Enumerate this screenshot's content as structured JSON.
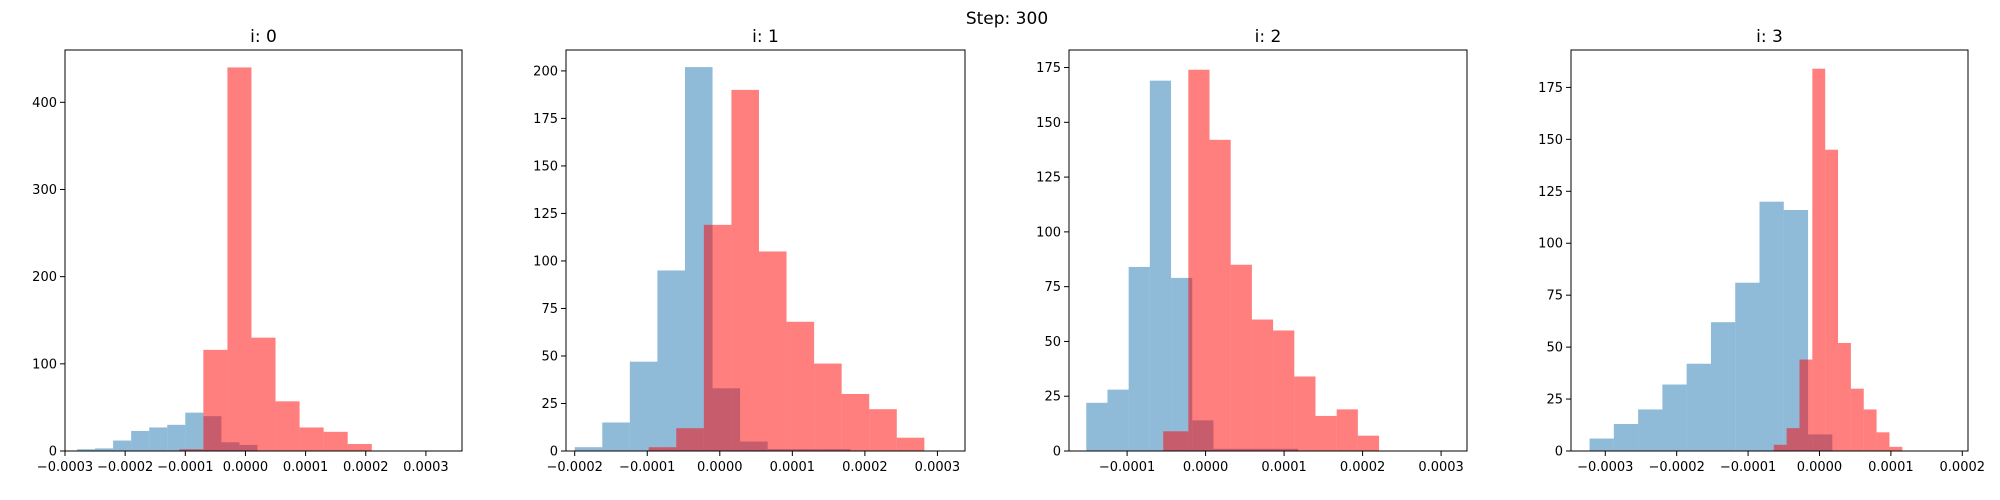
{
  "suptitle": "Step: 300",
  "chart_data": [
    {
      "type": "histogram",
      "title": "i: 0",
      "xlim": [
        -0.0003,
        0.00036
      ],
      "ylim": [
        0,
        460
      ],
      "xticks": [
        -0.0003,
        -0.0002,
        -0.0001,
        0.0,
        0.0001,
        0.0002,
        0.0003
      ],
      "xtick_labels": [
        "−0.0003",
        "−0.0002",
        "−0.0001",
        "0.0000",
        "0.0001",
        "0.0002",
        "0.0003"
      ],
      "yticks": [
        0,
        100,
        200,
        300,
        400
      ],
      "ytick_labels": [
        "0",
        "100",
        "200",
        "300",
        "400"
      ],
      "series": [
        {
          "color": "#1f77b4",
          "opacity": 0.5,
          "bins": [
            {
              "x0": -0.00028,
              "x1": -0.00025,
              "count": 2
            },
            {
              "x0": -0.00025,
              "x1": -0.00022,
              "count": 3
            },
            {
              "x0": -0.00022,
              "x1": -0.00019,
              "count": 12
            },
            {
              "x0": -0.00019,
              "x1": -0.00016,
              "count": 23
            },
            {
              "x0": -0.00016,
              "x1": -0.00013,
              "count": 27
            },
            {
              "x0": -0.00013,
              "x1": -0.0001,
              "count": 30
            },
            {
              "x0": -0.0001,
              "x1": -7e-05,
              "count": 44
            },
            {
              "x0": -7e-05,
              "x1": -4e-05,
              "count": 40
            },
            {
              "x0": -4e-05,
              "x1": -1e-05,
              "count": 10
            },
            {
              "x0": -1e-05,
              "x1": 2e-05,
              "count": 7
            }
          ]
        },
        {
          "color": "#ff0000",
          "opacity": 0.5,
          "bins": [
            {
              "x0": -0.00015,
              "x1": -0.00011,
              "count": 0
            },
            {
              "x0": -0.00011,
              "x1": -7e-05,
              "count": 2
            },
            {
              "x0": -7e-05,
              "x1": -3e-05,
              "count": 116
            },
            {
              "x0": -3e-05,
              "x1": 1e-05,
              "count": 440
            },
            {
              "x0": 1e-05,
              "x1": 5e-05,
              "count": 130
            },
            {
              "x0": 5e-05,
              "x1": 9e-05,
              "count": 57
            },
            {
              "x0": 9e-05,
              "x1": 0.00013,
              "count": 27
            },
            {
              "x0": 0.00013,
              "x1": 0.00017,
              "count": 22
            },
            {
              "x0": 0.00017,
              "x1": 0.00021,
              "count": 8
            }
          ]
        }
      ]
    },
    {
      "type": "histogram",
      "title": "i: 1",
      "xlim": [
        -0.000212,
        0.000338
      ],
      "ylim": [
        0,
        211
      ],
      "xticks": [
        -0.0002,
        -0.0001,
        0.0,
        0.0001,
        0.0002,
        0.0003
      ],
      "xtick_labels": [
        "−0.0002",
        "−0.0001",
        "0.0000",
        "0.0001",
        "0.0002",
        "0.0003"
      ],
      "yticks": [
        0,
        25,
        50,
        75,
        100,
        125,
        150,
        175,
        200
      ],
      "ytick_labels": [
        "0",
        "25",
        "50",
        "75",
        "100",
        "125",
        "150",
        "175",
        "200"
      ],
      "series": [
        {
          "color": "#1f77b4",
          "opacity": 0.5,
          "bins": [
            {
              "x0": -0.0002,
              "x1": -0.000162,
              "count": 2
            },
            {
              "x0": -0.000162,
              "x1": -0.000124,
              "count": 15
            },
            {
              "x0": -0.000124,
              "x1": -8.6e-05,
              "count": 47
            },
            {
              "x0": -8.6e-05,
              "x1": -4.8e-05,
              "count": 95
            },
            {
              "x0": -4.8e-05,
              "x1": -1e-05,
              "count": 202
            },
            {
              "x0": -1e-05,
              "x1": 2.8e-05,
              "count": 33
            },
            {
              "x0": 2.8e-05,
              "x1": 6.6e-05,
              "count": 5
            },
            {
              "x0": 6.6e-05,
              "x1": 0.000104,
              "count": 1
            },
            {
              "x0": 0.000104,
              "x1": 0.000142,
              "count": 1
            },
            {
              "x0": 0.000142,
              "x1": 0.00018,
              "count": 1
            }
          ]
        },
        {
          "color": "#ff0000",
          "opacity": 0.5,
          "bins": [
            {
              "x0": -9.8e-05,
              "x1": -6e-05,
              "count": 2
            },
            {
              "x0": -6e-05,
              "x1": -2.2e-05,
              "count": 12
            },
            {
              "x0": -2.2e-05,
              "x1": 1.6e-05,
              "count": 119
            },
            {
              "x0": 1.6e-05,
              "x1": 5.4e-05,
              "count": 190
            },
            {
              "x0": 5.4e-05,
              "x1": 9.2e-05,
              "count": 105
            },
            {
              "x0": 9.2e-05,
              "x1": 0.00013,
              "count": 68
            },
            {
              "x0": 0.00013,
              "x1": 0.000168,
              "count": 46
            },
            {
              "x0": 0.000168,
              "x1": 0.000206,
              "count": 30
            },
            {
              "x0": 0.000206,
              "x1": 0.000244,
              "count": 22
            },
            {
              "x0": 0.000244,
              "x1": 0.000282,
              "count": 7
            }
          ]
        }
      ]
    },
    {
      "type": "histogram",
      "title": "i: 2",
      "xlim": [
        -0.000174,
        0.000333
      ],
      "ylim": [
        0,
        183
      ],
      "xticks": [
        -0.0001,
        0.0,
        0.0001,
        0.0002,
        0.0003
      ],
      "xtick_labels": [
        "−0.0001",
        "0.0000",
        "0.0001",
        "0.0002",
        "0.0003"
      ],
      "yticks": [
        0,
        25,
        50,
        75,
        100,
        125,
        150,
        175
      ],
      "ytick_labels": [
        "0",
        "25",
        "50",
        "75",
        "100",
        "125",
        "150",
        "175"
      ],
      "series": [
        {
          "color": "#1f77b4",
          "opacity": 0.5,
          "bins": [
            {
              "x0": -0.000152,
              "x1": -0.000125,
              "count": 22
            },
            {
              "x0": -0.000125,
              "x1": -9.8e-05,
              "count": 28
            },
            {
              "x0": -9.8e-05,
              "x1": -7.1e-05,
              "count": 84
            },
            {
              "x0": -7.1e-05,
              "x1": -4.4e-05,
              "count": 169
            },
            {
              "x0": -4.4e-05,
              "x1": -1.7e-05,
              "count": 79
            },
            {
              "x0": -1.7e-05,
              "x1": 1e-05,
              "count": 14
            },
            {
              "x0": 1e-05,
              "x1": 3.7e-05,
              "count": 1
            },
            {
              "x0": 3.7e-05,
              "x1": 6.4e-05,
              "count": 1
            },
            {
              "x0": 6.4e-05,
              "x1": 9.1e-05,
              "count": 1
            },
            {
              "x0": 9.1e-05,
              "x1": 0.000118,
              "count": 1
            }
          ]
        },
        {
          "color": "#ff0000",
          "opacity": 0.5,
          "bins": [
            {
              "x0": -5.4e-05,
              "x1": -2.2e-05,
              "count": 9
            },
            {
              "x0": -2.2e-05,
              "x1": 5e-06,
              "count": 174
            },
            {
              "x0": 5e-06,
              "x1": 3.2e-05,
              "count": 142
            },
            {
              "x0": 3.2e-05,
              "x1": 5.9e-05,
              "count": 85
            },
            {
              "x0": 5.9e-05,
              "x1": 8.6e-05,
              "count": 60
            },
            {
              "x0": 8.6e-05,
              "x1": 0.000113,
              "count": 55
            },
            {
              "x0": 0.000113,
              "x1": 0.00014,
              "count": 34
            },
            {
              "x0": 0.00014,
              "x1": 0.000167,
              "count": 16
            },
            {
              "x0": 0.000167,
              "x1": 0.000194,
              "count": 19
            },
            {
              "x0": 0.000194,
              "x1": 0.000221,
              "count": 7
            }
          ]
        }
      ]
    },
    {
      "type": "histogram",
      "title": "i: 3",
      "xlim": [
        -0.000348,
        0.000208
      ],
      "ylim": [
        0,
        193
      ],
      "xticks": [
        -0.0003,
        -0.0002,
        -0.0001,
        0.0,
        0.0001,
        0.0002
      ],
      "xtick_labels": [
        "−0.0003",
        "−0.0002",
        "−0.0001",
        "0.0000",
        "0.0001",
        "0.0002"
      ],
      "yticks": [
        0,
        25,
        50,
        75,
        100,
        125,
        150,
        175
      ],
      "ytick_labels": [
        "0",
        "25",
        "50",
        "75",
        "100",
        "125",
        "150",
        "175"
      ],
      "series": [
        {
          "color": "#1f77b4",
          "opacity": 0.5,
          "bins": [
            {
              "x0": -0.000322,
              "x1": -0.000288,
              "count": 6
            },
            {
              "x0": -0.000288,
              "x1": -0.000254,
              "count": 13
            },
            {
              "x0": -0.000254,
              "x1": -0.00022,
              "count": 20
            },
            {
              "x0": -0.00022,
              "x1": -0.000186,
              "count": 32
            },
            {
              "x0": -0.000186,
              "x1": -0.000152,
              "count": 42
            },
            {
              "x0": -0.000152,
              "x1": -0.000118,
              "count": 62
            },
            {
              "x0": -0.000118,
              "x1": -8.4e-05,
              "count": 81
            },
            {
              "x0": -8.4e-05,
              "x1": -5e-05,
              "count": 120
            },
            {
              "x0": -5e-05,
              "x1": -1.6e-05,
              "count": 116
            },
            {
              "x0": -1.6e-05,
              "x1": 1.8e-05,
              "count": 8
            }
          ]
        },
        {
          "color": "#ff0000",
          "opacity": 0.5,
          "bins": [
            {
              "x0": -6.4e-05,
              "x1": -4.6e-05,
              "count": 3
            },
            {
              "x0": -4.6e-05,
              "x1": -2.8e-05,
              "count": 11
            },
            {
              "x0": -2.8e-05,
              "x1": -1e-05,
              "count": 44
            },
            {
              "x0": -1e-05,
              "x1": 8e-06,
              "count": 184
            },
            {
              "x0": 8e-06,
              "x1": 2.6e-05,
              "count": 145
            },
            {
              "x0": 2.6e-05,
              "x1": 4.4e-05,
              "count": 52
            },
            {
              "x0": 4.4e-05,
              "x1": 6.2e-05,
              "count": 30
            },
            {
              "x0": 6.2e-05,
              "x1": 8e-05,
              "count": 20
            },
            {
              "x0": 8e-05,
              "x1": 9.8e-05,
              "count": 9
            },
            {
              "x0": 9.8e-05,
              "x1": 0.000116,
              "count": 2
            }
          ]
        }
      ]
    }
  ]
}
